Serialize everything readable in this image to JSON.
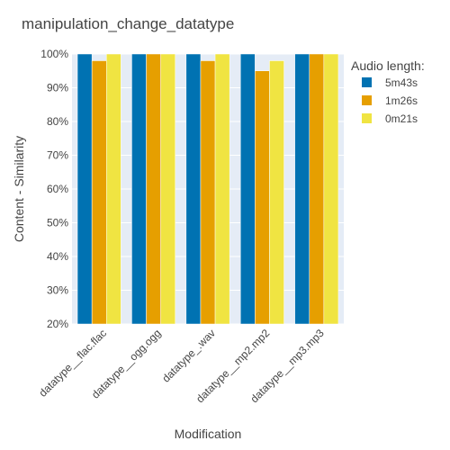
{
  "chart_data": {
    "type": "bar",
    "title": "manipulation_change_datatype",
    "xlabel": "Modification",
    "ylabel": "Content - Similarity",
    "ylim": [
      0.2,
      1.0
    ],
    "ytick_values": [
      0.2,
      0.3,
      0.4,
      0.5,
      0.6,
      0.7,
      0.8,
      0.9,
      1.0
    ],
    "ytick_labels": [
      "20%",
      "30%",
      "40%",
      "50%",
      "60%",
      "70%",
      "80%",
      "90%",
      "100%"
    ],
    "categories": [
      "datatype__flac.flac",
      "datatype__ogg.ogg",
      "datatype_.wav",
      "datatype__mp2.mp2",
      "datatype__mp3.mp3"
    ],
    "legend_title": "Audio length:",
    "legend_position": "top-right",
    "grid": true,
    "plot_background": "#e5ecf6",
    "series": [
      {
        "name": "5m43s",
        "color": "#0072b2",
        "values": [
          1.0,
          1.0,
          1.0,
          1.0,
          1.0
        ]
      },
      {
        "name": "1m26s",
        "color": "#e69f00",
        "values": [
          0.98,
          1.0,
          0.98,
          0.95,
          1.0
        ]
      },
      {
        "name": "0m21s",
        "color": "#f0e442",
        "values": [
          1.0,
          1.0,
          1.0,
          0.98,
          1.0
        ]
      }
    ]
  }
}
